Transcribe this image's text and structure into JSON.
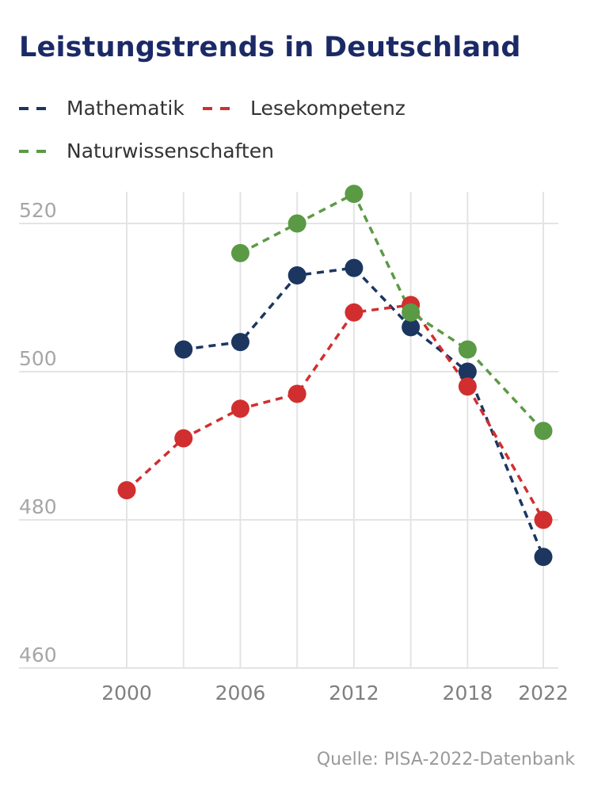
{
  "chart_data": {
    "type": "line",
    "title": "Leistungstrends in Deutschland",
    "xlabel": "",
    "ylabel": "",
    "ylim": [
      460,
      520
    ],
    "yticks": [
      460,
      480,
      500,
      520
    ],
    "xlim": [
      2000,
      2022
    ],
    "xticks": [
      2000,
      2006,
      2012,
      2018,
      2022
    ],
    "x_gridlines": [
      2000,
      2003,
      2006,
      2009,
      2012,
      2015,
      2018,
      2022
    ],
    "grid": true,
    "legend_position": "top-left",
    "line_style": "dashed",
    "source": "Quelle: PISA-2022-Datenbank",
    "series": [
      {
        "name": "Mathematik",
        "color": "#1c3660",
        "x": [
          2003,
          2006,
          2009,
          2012,
          2015,
          2018,
          2022
        ],
        "values": [
          503,
          504,
          513,
          514,
          506,
          500,
          475
        ]
      },
      {
        "name": "Lesekompetenz",
        "color": "#d12f2f",
        "x": [
          2000,
          2003,
          2006,
          2009,
          2012,
          2015,
          2018,
          2022
        ],
        "values": [
          484,
          491,
          495,
          497,
          508,
          509,
          498,
          480
        ]
      },
      {
        "name": "Naturwissenschaften",
        "color": "#5b9a45",
        "x": [
          2006,
          2009,
          2012,
          2015,
          2018,
          2022
        ],
        "values": [
          516,
          520,
          524,
          508,
          503,
          492
        ]
      }
    ]
  }
}
